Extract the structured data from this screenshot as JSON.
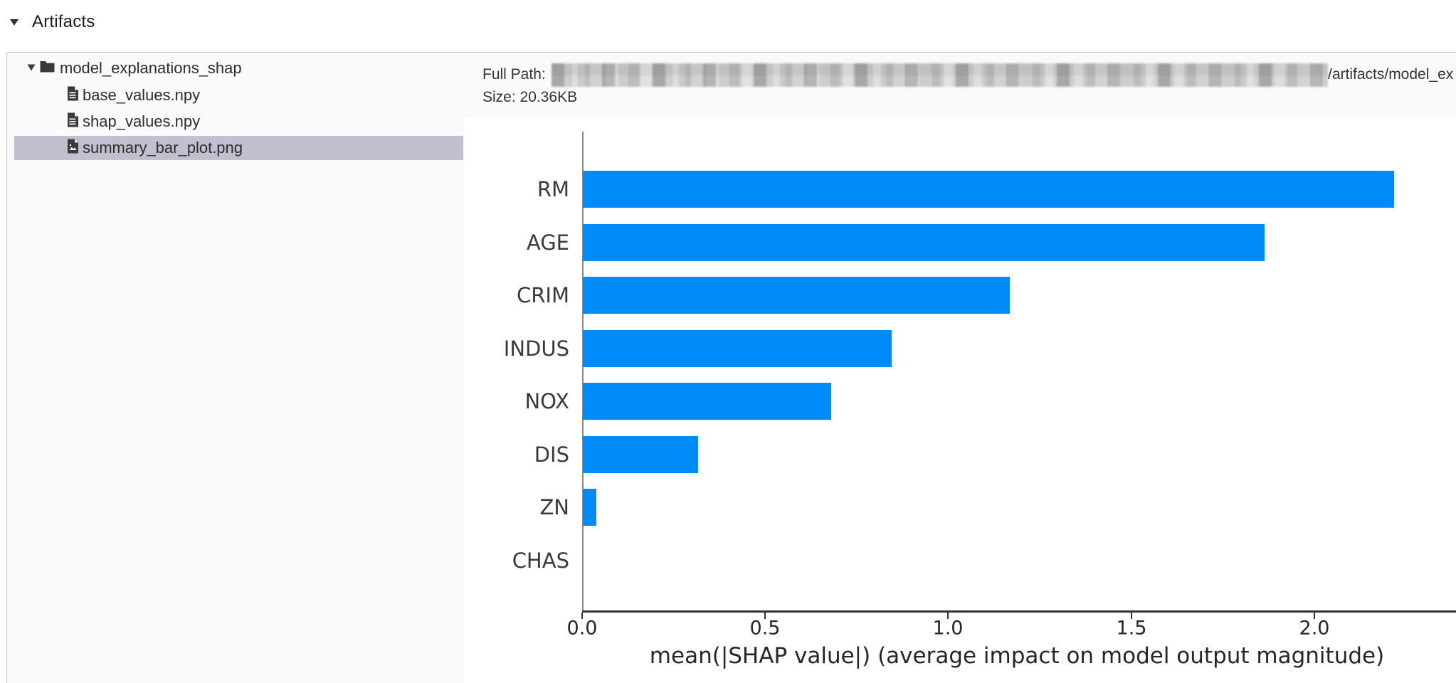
{
  "header": {
    "title": "Artifacts",
    "collapse_icon": "triangle-down-icon"
  },
  "file_tree": {
    "folder": {
      "name": "model_explanations_shap",
      "icon": "folder-icon",
      "caret_icon": "triangle-down-icon",
      "expanded": true
    },
    "files": [
      {
        "name": "base_values.npy",
        "icon": "file-text-icon",
        "selected": false
      },
      {
        "name": "shap_values.npy",
        "icon": "file-text-icon",
        "selected": false
      },
      {
        "name": "summary_bar_plot.png",
        "icon": "file-image-icon",
        "selected": true
      }
    ]
  },
  "details": {
    "full_path_label": "Full Path:",
    "full_path_redacted": true,
    "full_path_visible_suffix": "/artifacts/model_ex",
    "size_label": "Size:",
    "size_value": "20.36KB"
  },
  "colors": {
    "bar_blue": "#008bfb",
    "selected_row": "#c4bfd0",
    "panel_bg": "#fafafa",
    "border": "#c8c8c8",
    "axis": "#333333"
  },
  "chart_data": {
    "type": "bar",
    "orientation": "horizontal",
    "categories": [
      "RM",
      "AGE",
      "CRIM",
      "INDUS",
      "NOX",
      "DIS",
      "ZN",
      "CHAS"
    ],
    "values": [
      2.216,
      1.862,
      1.166,
      0.844,
      0.678,
      0.315,
      0.037,
      0.0
    ],
    "title": "",
    "xlabel": "mean(|SHAP value|) (average impact on model output magnitude)",
    "ylabel": "",
    "xticks": [
      0.0,
      0.5,
      1.0,
      1.5,
      2.0
    ],
    "xlim": [
      0,
      2.39
    ],
    "grid": false,
    "legend": "none",
    "bar_color": "#008bfb"
  }
}
